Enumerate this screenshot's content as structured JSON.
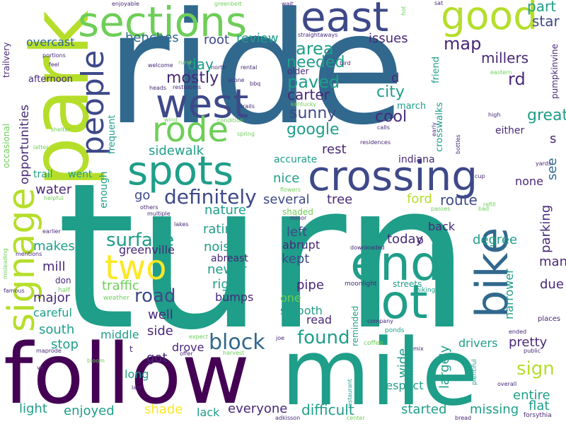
{
  "palette": {
    "dark_purple": "#440154",
    "indigo": "#482878",
    "slate_blue": "#3e4989",
    "steel_blue": "#31688e",
    "teal": "#26828e",
    "green_teal": "#1f9e89",
    "green": "#35b779",
    "light_green": "#6ece58",
    "lime": "#b5de2b",
    "yellow": "#fde725"
  },
  "words": {
    "turn": "turn",
    "ride": "ride",
    "follow": "follow",
    "mile": "mile",
    "park": "park",
    "east": "east",
    "sections": "sections",
    "good": "good",
    "west": "west",
    "spots": "spots",
    "crossing": "crossing",
    "signage": "signage",
    "rode": "rode",
    "people": "people",
    "end": "end",
    "lot": "lot",
    "bike": "bike",
    "two": "two",
    "definitely": "definitely",
    "block": "block",
    "road": "road",
    "surface": "surface",
    "found": "found",
    "sign": "sign",
    "map": "map",
    "area": "area",
    "paved": "paved",
    "sunny": "sunny",
    "cool": "cool",
    "google": "google",
    "great": "great",
    "rd": "rd",
    "city": "city",
    "carter": "carter",
    "day": "day",
    "mostly": "mostly",
    "needed": "needed",
    "part": "part",
    "star": "star",
    "millers": "millers",
    "benches": "benches",
    "root": "root",
    "review": "review",
    "issues": "issues",
    "overcast": "overcast",
    "opportunities": "opportunities",
    "sidewalk": "sidewalk",
    "rest": "rest",
    "water": "water",
    "nice": "nice",
    "several": "several",
    "tree": "tree",
    "ford": "ford",
    "route": "route",
    "parking": "parking",
    "see": "see",
    "go": "go",
    "nature": "nature",
    "rating": "rating",
    "left": "left",
    "makes": "makes",
    "greenville": "greenville",
    "noise": "noise",
    "abrupt": "abrupt",
    "today": "today",
    "mill": "mill",
    "newer": "newer",
    "kept": "kept",
    "abreast": "abreast",
    "traffic": "traffic",
    "right": "right",
    "pipe": "pipe",
    "major": "major",
    "bumps": "bumps",
    "one": "one",
    "well": "well",
    "smooth": "smooth",
    "careful": "careful",
    "south": "south",
    "side": "side",
    "read": "read",
    "middle": "middle",
    "stop": "stop",
    "drove": "drove",
    "got": "got",
    "pretty": "pretty",
    "wide": "wide",
    "largely": "largely",
    "drivers": "drivers",
    "long": "long",
    "respect": "respect",
    "started": "started",
    "missing": "missing",
    "entire": "entire",
    "flat": "flat",
    "light": "light",
    "enjoyed": "enjoyed",
    "shade": "shade",
    "lack": "lack",
    "everyone": "everyone",
    "difficult": "difficult",
    "due": "due",
    "many": "many",
    "narrower": "narrower",
    "degree": "degree",
    "back": "back",
    "none": "none",
    "s": "s",
    "d": "d",
    "o": "o",
    "march": "march",
    "crosswalks": "crosswalks",
    "friend": "friend",
    "either": "either",
    "pumpkinvine": "pumpkinvine",
    "accurate": "accurate",
    "indiana": "indiana",
    "enough": "enough",
    "frequent": "frequent",
    "afternoon": "afternoon",
    "trail": "trail",
    "went": "went",
    "occasional": "occasional",
    "trailvery": "trailvery",
    "older": "older",
    "shaded": "shaded",
    "reminded": "reminded",
    "streets": "streets",
    "places": "places",
    "due2": "due",
    "ended": "ended",
    "public": "public",
    "plentiful": "plentiful",
    "restaurant": "restaurant",
    "forsythia": "forsythia",
    "bread": "bread",
    "adkisson": "adkisson",
    "center": "center",
    "overall": "overall",
    "coffee": "coffee",
    "ponds": "ponds",
    "company": "company",
    "hiking": "hiking",
    "moonlight": "moonlight",
    "downloaded": "downloaded",
    "don": "don",
    "half": "half",
    "weather": "weather",
    "famous": "famous",
    "misleading": "misleading",
    "mentions": "mentions",
    "earlier": "earlier",
    "lakes": "lakes",
    "multiple": "multiple",
    "others": "others",
    "helpful": "helpful",
    "minor": "minor",
    "passes": "passes",
    "bad": "bad",
    "refill": "refill",
    "flowers": "flowers",
    "expect": "expect",
    "harvest": "harvest",
    "joe": "joe",
    "offer": "offer",
    "bloom": "bloom",
    "laid": "laid",
    "maprode": "maprode",
    "ve": "ve",
    "t": "t",
    "mix": "mix",
    "trails": "trails",
    "condition": "condition",
    "wind": "wind",
    "spring": "spring",
    "shelter": "shelter",
    "latter": "latter",
    "enjoyable": "enjoyable",
    "welcome": "welcome",
    "portions": "portions",
    "feel": "feel",
    "rural": "rural",
    "north": "north",
    "rental": "rental",
    "bird": "bird",
    "straightaways": "straightaways",
    "greenbelt": "greenbelt",
    "wait": "wait",
    "sat": "sat",
    "hot": "hot",
    "heads": "heads",
    "restrooms": "restrooms",
    "scone": "scone",
    "bbq": "bbq",
    "kentucky": "kentucky",
    "residences": "residences",
    "calls": "calls",
    "early": "early",
    "bottles": "bottles",
    "cup": "cup",
    "yards": "yards",
    "high": "high",
    "eastern": "eastern"
  }
}
